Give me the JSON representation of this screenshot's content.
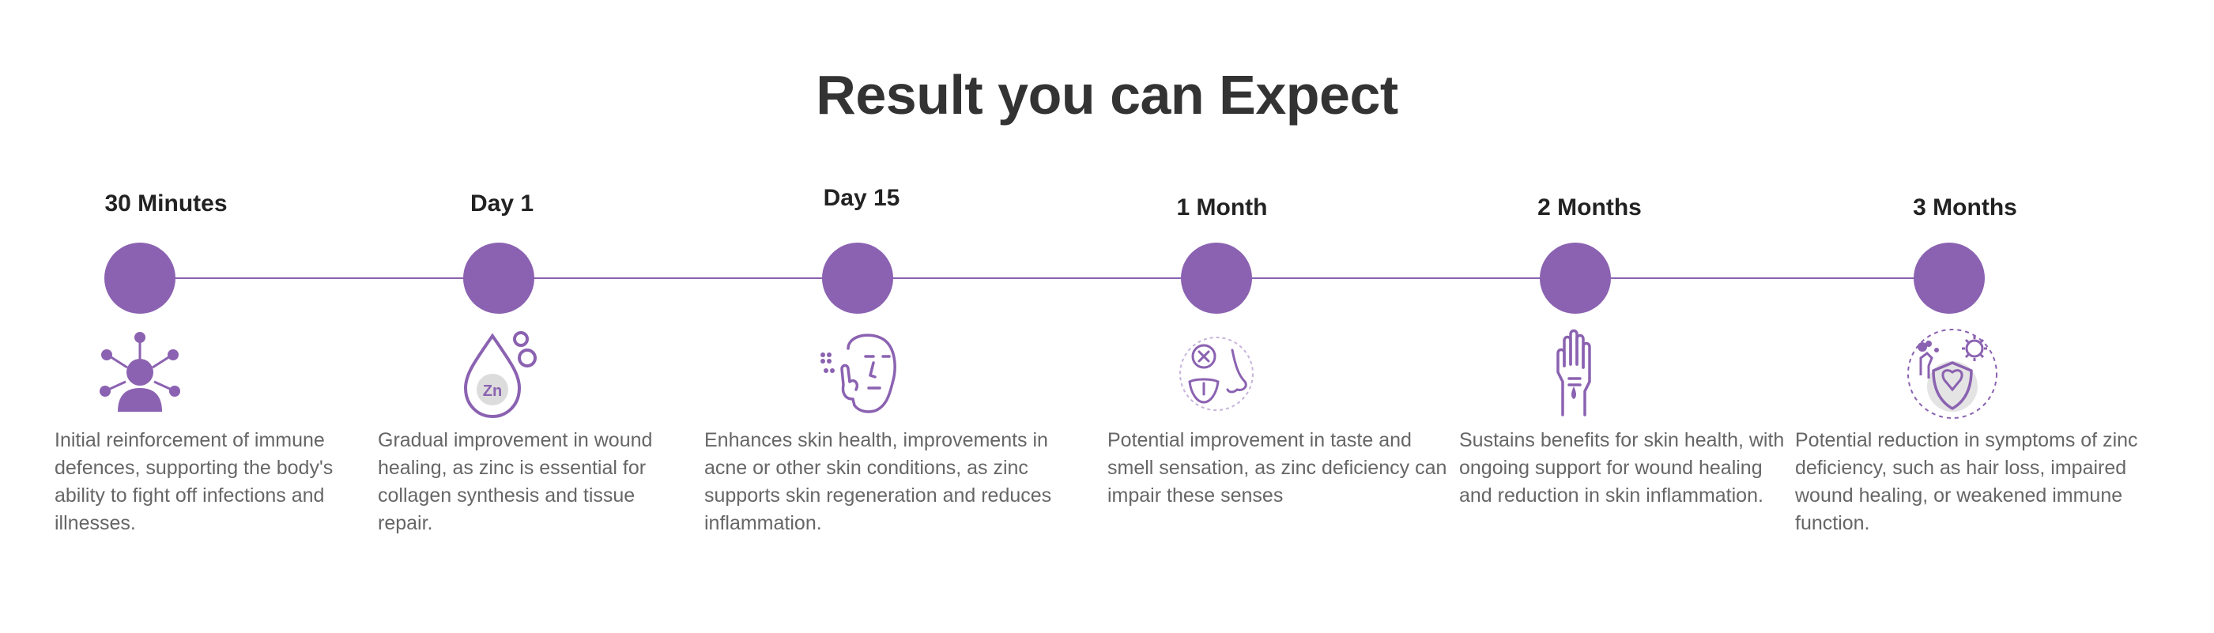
{
  "title": "Result you can Expect",
  "accent_color": "#8b62b1",
  "stages": [
    {
      "label": "30 Minutes",
      "icon": "immune-network-icon",
      "description": "Initial reinforcement of immune defences, supporting the body's ability to fight off infections and illnesses."
    },
    {
      "label": "Day 1",
      "icon": "zinc-droplet-icon",
      "icon_text": "Zn",
      "description": "Gradual improvement in wound healing, as zinc is essential for collagen synthesis and tissue repair."
    },
    {
      "label": "Day 15",
      "icon": "skin-face-icon",
      "description": "Enhances skin health, improvements in acne or other skin conditions, as zinc supports skin regeneration and reduces inflammation."
    },
    {
      "label": "1 Month",
      "icon": "taste-smell-icon",
      "description": "Potential improvement in taste and smell sensation, as zinc deficiency can impair these senses"
    },
    {
      "label": "2 Months",
      "icon": "wound-hand-icon",
      "description": "Sustains benefits for skin health, with ongoing support for wound healing and reduction in skin inflammation."
    },
    {
      "label": "3 Months",
      "icon": "virus-shield-icon",
      "description": "Potential reduction in symptoms of zinc deficiency, such as hair loss, impaired wound healing, or weakened  immune function."
    }
  ]
}
